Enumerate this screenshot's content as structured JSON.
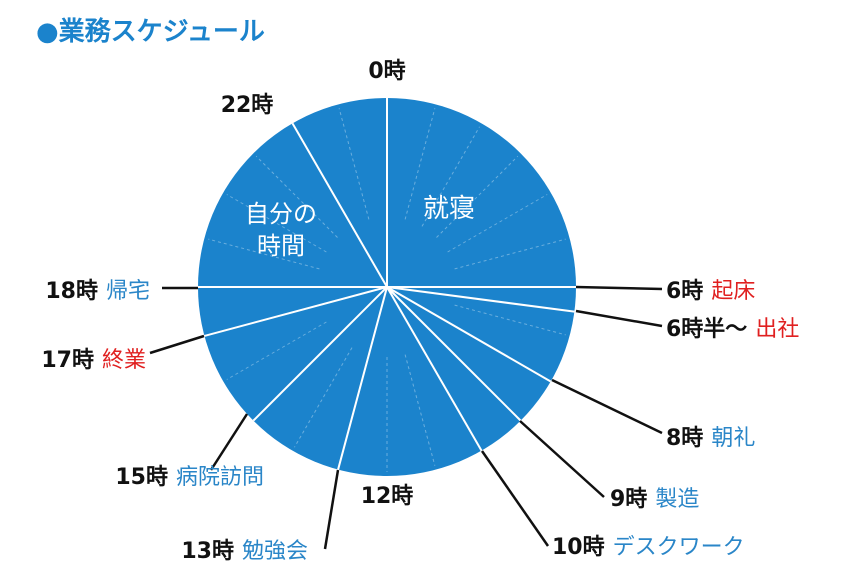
{
  "title": "●業務スケジュール",
  "colors": {
    "pie": "#1b83cc",
    "divider": "#ffffff",
    "label_black": "#111111",
    "label_blue": "#2a86c8",
    "label_red": "#e02020"
  },
  "hours": {
    "h0": "0時",
    "h12": "12時",
    "h22": "22時"
  },
  "sections": {
    "sleep": "就寝",
    "free_line1": "自分の",
    "free_line2": "時間"
  },
  "events": [
    {
      "id": "wake",
      "time": "6時",
      "activity": "起床",
      "color": "red"
    },
    {
      "id": "commute",
      "time": "6時半〜",
      "activity": "出社",
      "color": "red"
    },
    {
      "id": "morning-meeting",
      "time": "8時",
      "activity": "朝礼",
      "color": "blue"
    },
    {
      "id": "manufacturing",
      "time": "9時",
      "activity": "製造",
      "color": "blue"
    },
    {
      "id": "desk-work",
      "time": "10時",
      "activity": "デスクワーク",
      "color": "blue"
    },
    {
      "id": "study-session",
      "time": "13時",
      "activity": "勉強会",
      "color": "blue"
    },
    {
      "id": "hospital-visit",
      "time": "15時",
      "activity": "病院訪問",
      "color": "blue"
    },
    {
      "id": "work-end",
      "time": "17時",
      "activity": "終業",
      "color": "red"
    },
    {
      "id": "go-home",
      "time": "18時",
      "activity": "帰宅",
      "color": "blue"
    }
  ]
}
